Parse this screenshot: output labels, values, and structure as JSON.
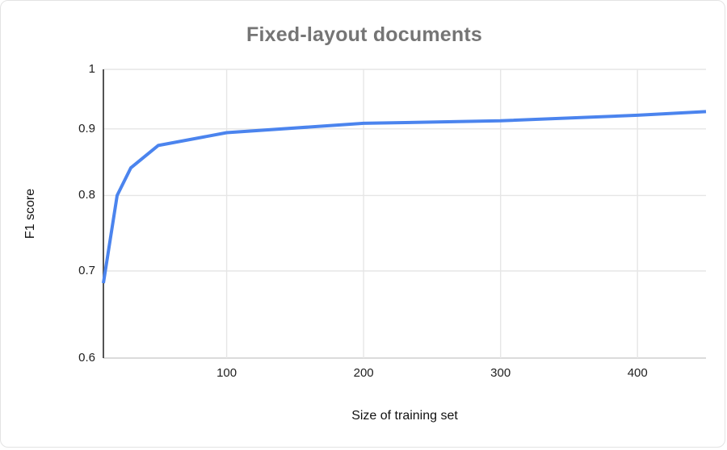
{
  "chart": {
    "title": "Fixed-layout documents",
    "xlabel": "Size of training set",
    "ylabel": "F1 score"
  },
  "chart_data": {
    "type": "line",
    "title": "Fixed-layout documents",
    "xlabel": "Size of training set",
    "ylabel": "F1 score",
    "x": [
      10,
      20,
      30,
      50,
      100,
      200,
      300,
      400,
      450
    ],
    "y": [
      0.685,
      0.8,
      0.84,
      0.874,
      0.894,
      0.909,
      0.913,
      0.922,
      0.928
    ],
    "series": [
      {
        "name": "F1 score",
        "x": [
          10,
          20,
          30,
          50,
          100,
          200,
          300,
          400,
          450
        ],
        "values": [
          0.685,
          0.8,
          0.84,
          0.874,
          0.894,
          0.909,
          0.913,
          0.922,
          0.928
        ]
      }
    ],
    "xlim": [
      10,
      450
    ],
    "ylim": [
      0.6,
      1.0
    ],
    "y_scale": "log",
    "xticks": [
      100,
      200,
      300,
      400
    ],
    "xtick_labels": [
      "100",
      "200",
      "300",
      "400"
    ],
    "yticks": [
      1,
      0.9,
      0.8,
      0.7,
      0.6
    ],
    "ytick_labels": [
      "1",
      "0.9",
      "0.8",
      "0.7",
      "0.6"
    ],
    "grid": true,
    "legend_position": "none",
    "colors": {
      "line": "#4b84ee",
      "title": "#757575",
      "axis_text": "#202020",
      "grid": "#e6e6e6",
      "baseline": "#cfcfcf",
      "y_axis_line": "#424242",
      "card_border": "#e3e3e3",
      "background": "#ffffff"
    }
  }
}
